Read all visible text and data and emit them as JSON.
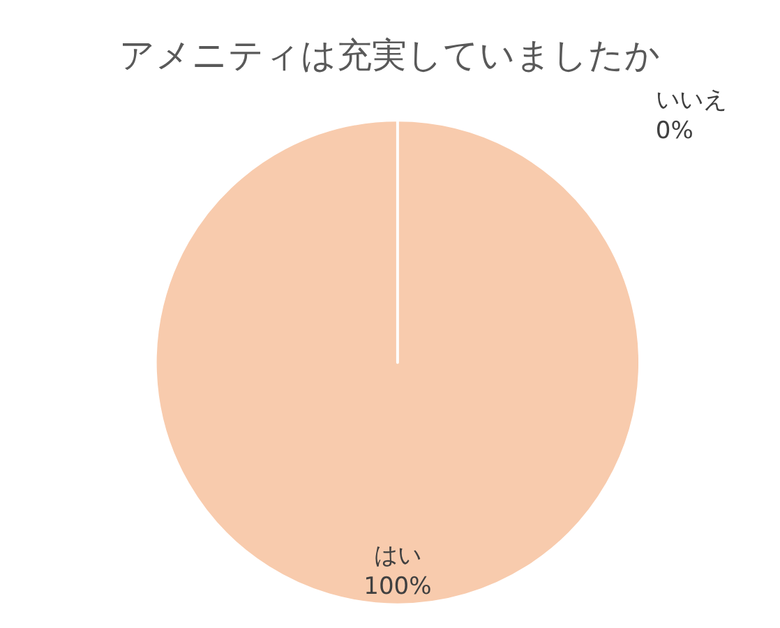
{
  "chart_data": {
    "type": "pie",
    "title": "アメニティは充実していましたか",
    "categories": [
      "はい",
      "いいえ"
    ],
    "values": [
      100,
      0
    ],
    "colors": [
      "#f8cbad",
      "#f4b183"
    ],
    "value_labels": [
      "100%",
      "0%"
    ],
    "legend": false
  }
}
